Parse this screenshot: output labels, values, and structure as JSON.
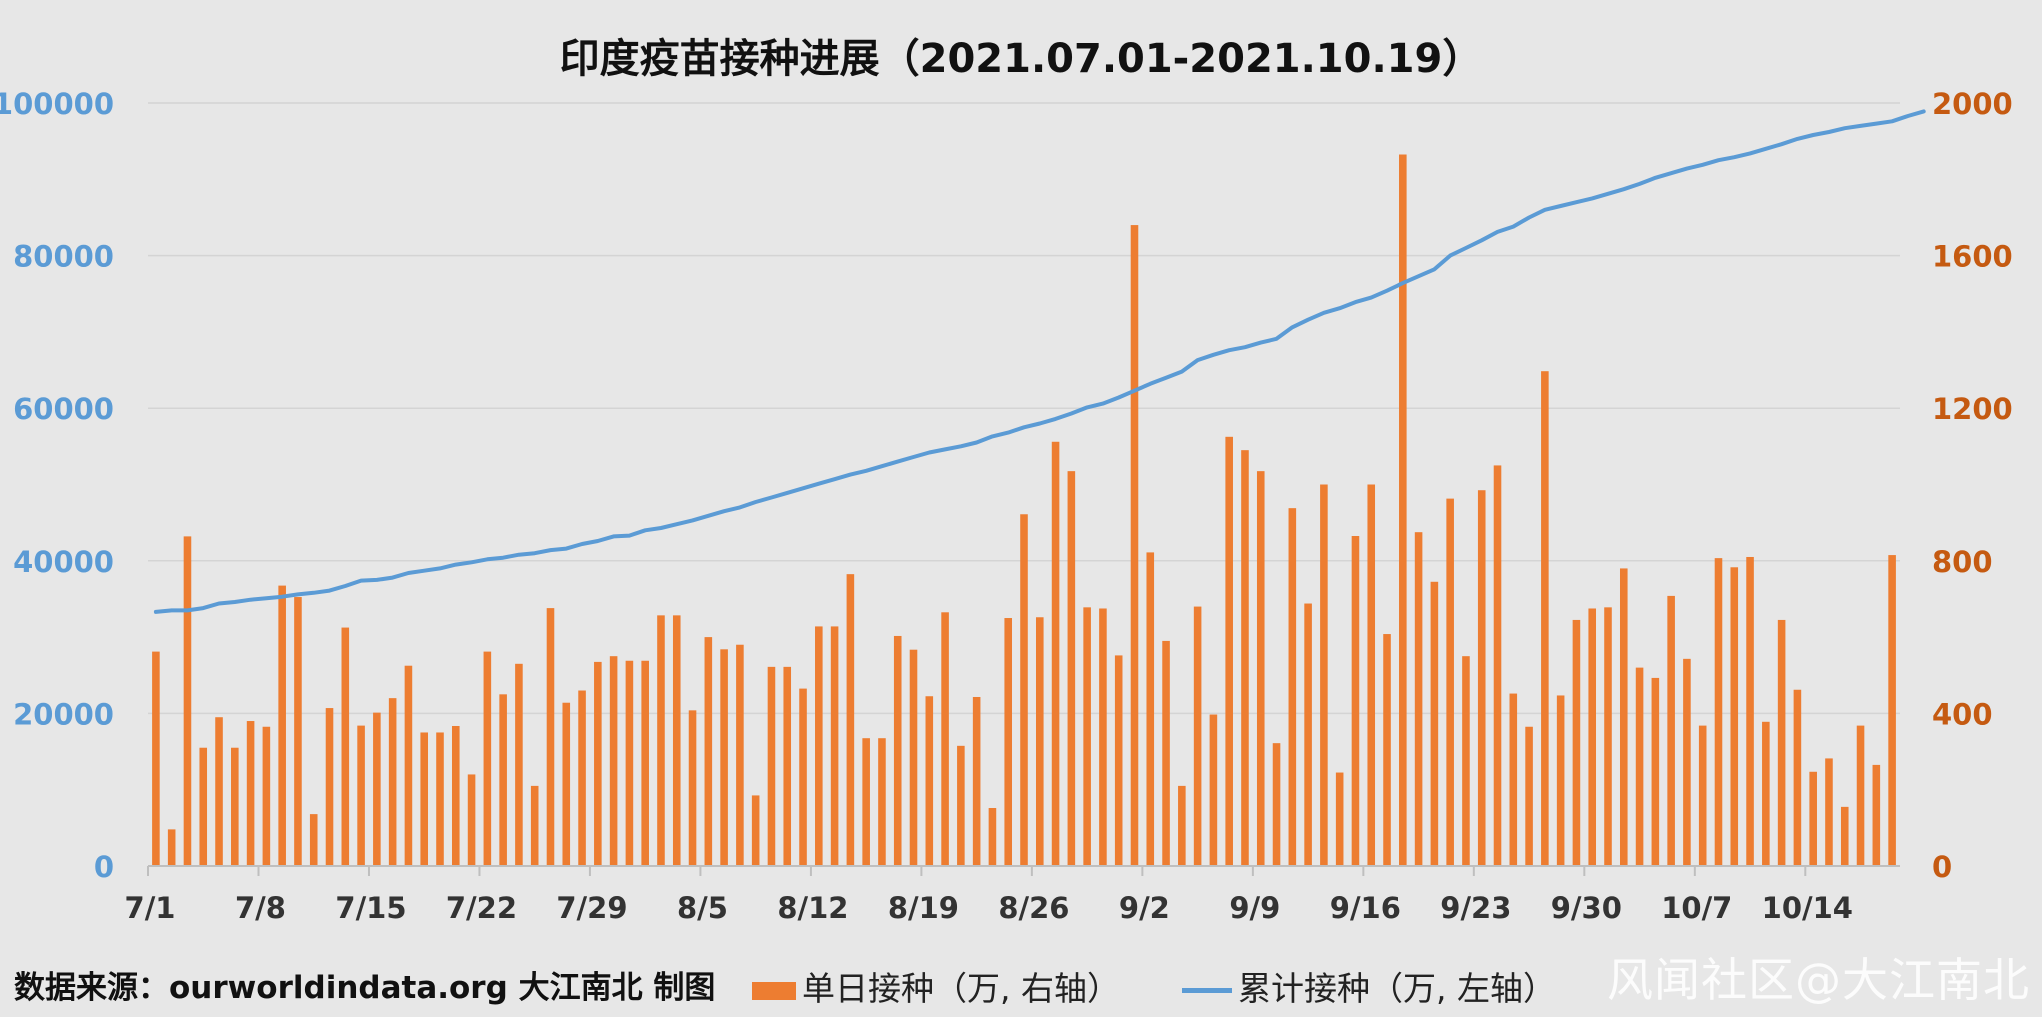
{
  "title": "印度疫苗接种进展（2021.07.01-2021.10.19）",
  "footer": {
    "source": "数据来源：ourworldindata.org 大江南北 制图",
    "legend_bar": "单日接种（万, 右轴）",
    "legend_line": "累计接种（万, 左轴）",
    "watermark": "风闻社区@大江南北"
  },
  "colors": {
    "bar": "#ed7d31",
    "line": "#5b9bd5",
    "left_axis": "#5b9bd5",
    "right_axis": "#c55a11",
    "grid": "#d4d4d4"
  },
  "chart_data": {
    "type": "bar+line",
    "x_tick_labels": [
      "7/1",
      "7/8",
      "7/15",
      "7/22",
      "7/29",
      "8/5",
      "8/12",
      "8/19",
      "8/26",
      "9/2",
      "9/9",
      "9/16",
      "9/23",
      "9/30",
      "10/7",
      "10/14"
    ],
    "x_tick_every": 7,
    "left_axis": {
      "ylim": [
        0,
        100000
      ],
      "ticks": [
        0,
        20000,
        40000,
        60000,
        80000,
        100000
      ]
    },
    "right_axis": {
      "ylim": [
        0,
        2000
      ],
      "ticks": [
        0,
        400,
        800,
        1200,
        1600,
        2000
      ]
    },
    "grid": true,
    "legend_position": "bottom",
    "series": [
      {
        "name": "单日接种（万, 右轴）",
        "axis": "right",
        "type": "bar",
        "values": [
          562,
          96,
          864,
          310,
          390,
          310,
          380,
          365,
          735,
          705,
          136,
          414,
          625,
          368,
          402,
          440,
          525,
          350,
          350,
          367,
          240,
          562,
          450,
          530,
          210,
          676,
          428,
          460,
          535,
          550,
          538,
          538,
          657,
          657,
          408,
          600,
          568,
          580,
          185,
          522,
          522,
          465,
          628,
          628,
          765,
          335,
          335,
          603,
          567,
          445,
          665,
          315,
          443,
          152,
          650,
          922,
          652,
          1112,
          1035,
          678,
          675,
          552,
          1680,
          822,
          590,
          210,
          680,
          397,
          1125,
          1090,
          1035,
          322,
          938,
          688,
          1000,
          245,
          865,
          1000,
          608,
          1865,
          875,
          745,
          963,
          550,
          985,
          1050,
          452,
          365,
          1297,
          447,
          645,
          675,
          678,
          780,
          520,
          493,
          708,
          543,
          368,
          807,
          783,
          810,
          378,
          645,
          462,
          247,
          282,
          155,
          368,
          265,
          815
        ]
      },
      {
        "name": "累计接种（万, 左轴）",
        "axis": "left",
        "type": "line",
        "values": [
          33300,
          33500,
          33500,
          33800,
          34400,
          34600,
          34900,
          35100,
          35300,
          35600,
          35800,
          36100,
          36700,
          37400,
          37500,
          37800,
          38400,
          38700,
          39000,
          39500,
          39800,
          40200,
          40400,
          40800,
          41000,
          41400,
          41600,
          42200,
          42600,
          43200,
          43300,
          44000,
          44300,
          44800,
          45300,
          45900,
          46500,
          47000,
          47700,
          48300,
          48900,
          49500,
          50100,
          50700,
          51300,
          51800,
          52400,
          53000,
          53600,
          54200,
          54600,
          55000,
          55500,
          56300,
          56800,
          57500,
          58000,
          58600,
          59300,
          60100,
          60600,
          61400,
          62300,
          63200,
          64000,
          64800,
          66300,
          67000,
          67600,
          68000,
          68600,
          69100,
          70600,
          71600,
          72500,
          73100,
          73900,
          74500,
          75400,
          76400,
          77300,
          78200,
          80000,
          81000,
          82000,
          83100,
          83800,
          85000,
          86000,
          86500,
          87000,
          87500,
          88100,
          88700,
          89400,
          90200,
          90800,
          91400,
          91900,
          92500,
          92900,
          93400,
          94000,
          94600,
          95300,
          95800,
          96200,
          96700,
          97000,
          97300,
          97600,
          98300,
          98900
        ]
      }
    ]
  }
}
